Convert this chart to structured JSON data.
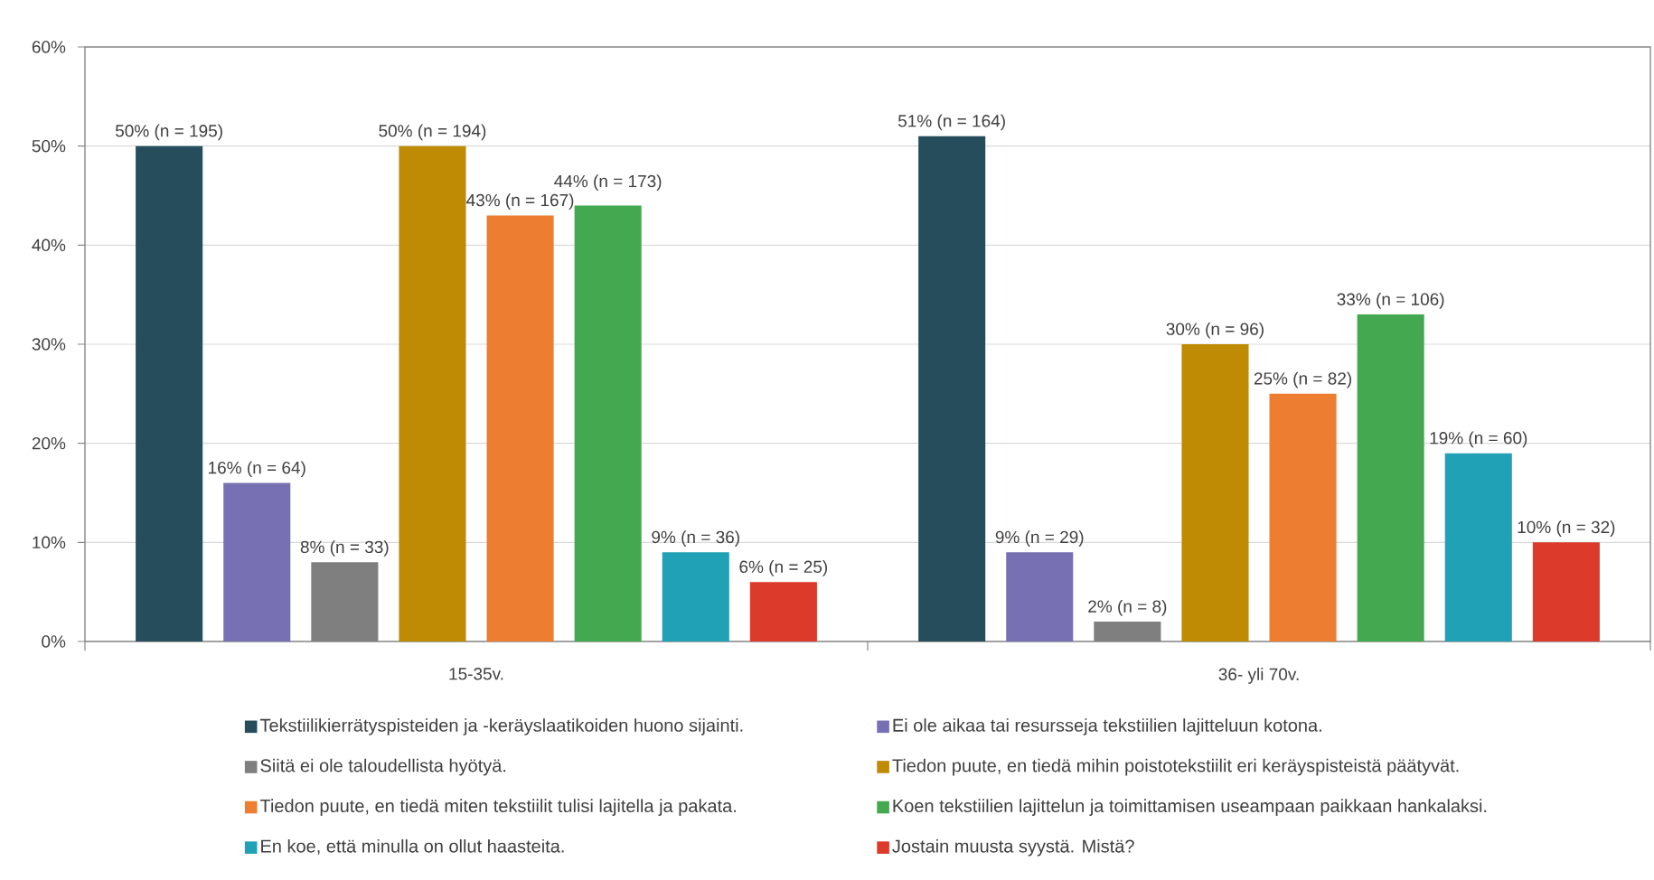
{
  "chart_data": {
    "type": "bar",
    "categories": [
      "15-35v.",
      "36- yli 70v."
    ],
    "series": [
      {
        "name": "Tekstiilikierrätyspisteiden ja -keräyslaatikoiden huono sijainti.",
        "color": "#254d5b",
        "values": [
          50,
          51
        ],
        "value_labels": [
          "50% (n = 195)",
          "51% (n = 164)"
        ]
      },
      {
        "name": "Ei ole aikaa tai resursseja tekstiilien lajitteluun kotona.",
        "color": "#7771b4",
        "values": [
          16,
          9
        ],
        "value_labels": [
          "16% (n = 64)",
          "9% (n = 29)"
        ]
      },
      {
        "name": "Siitä ei ole taloudellista hyötyä.",
        "color": "#7f7f7f",
        "values": [
          8,
          2
        ],
        "value_labels": [
          "8% (n = 33)",
          "2% (n = 8)"
        ]
      },
      {
        "name": "Tiedon puute, en tiedä mihin poistotekstiilit eri keräyspisteistä päätyvät.",
        "color": "#bf8a04",
        "values": [
          50,
          30
        ],
        "value_labels": [
          "50% (n = 194)",
          "30% (n = 96)"
        ]
      },
      {
        "name": "Tiedon puute, en tiedä miten tekstiilit tulisi lajitella ja pakata.",
        "color": "#ed7d31",
        "values": [
          43,
          25
        ],
        "value_labels": [
          "43% (n = 167)",
          "25% (n = 82)"
        ]
      },
      {
        "name": "Koen tekstiilien lajittelun ja toimittamisen useampaan paikkaan hankalaksi.",
        "color": "#44a851",
        "values": [
          44,
          33
        ],
        "value_labels": [
          "44% (n = 173)",
          "33% (n = 106)"
        ]
      },
      {
        "name": "En koe, että minulla on ollut haasteita.",
        "color": "#21a1b6",
        "values": [
          9,
          19
        ],
        "value_labels": [
          "9% (n = 36)",
          "19% (n = 60)"
        ]
      },
      {
        "name": "Jostain muusta syystä. Mistä?",
        "color": "#dc3a2b",
        "values": [
          6,
          10
        ],
        "value_labels": [
          "6% (n = 25)",
          "10% (n = 32)"
        ]
      }
    ],
    "ylim": [
      0,
      60
    ],
    "yticks": [
      {
        "value": 0,
        "label": "0%"
      },
      {
        "value": 10,
        "label": "10%"
      },
      {
        "value": 20,
        "label": "20%"
      },
      {
        "value": 30,
        "label": "30%"
      },
      {
        "value": 40,
        "label": "40%"
      },
      {
        "value": 50,
        "label": "50%"
      },
      {
        "value": 60,
        "label": "60%"
      }
    ],
    "grid": "y",
    "legend": "bottom"
  }
}
